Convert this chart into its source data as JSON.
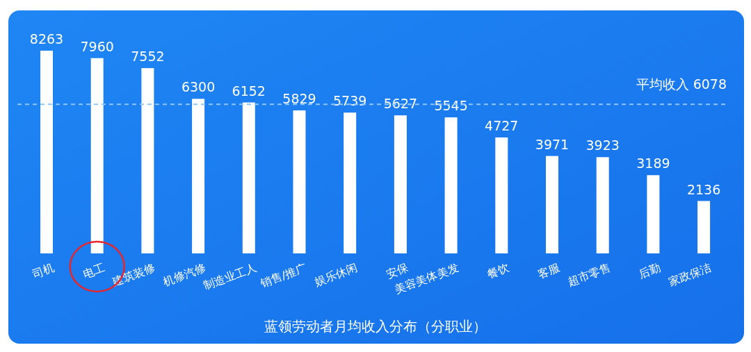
{
  "chart_data": {
    "type": "bar",
    "title": "蓝领劳动者月均收入分布（分职业）",
    "categories": [
      "司机",
      "电工",
      "建筑装修",
      "机修汽修",
      "制造业工人",
      "销售/推广",
      "娱乐休闲",
      "安保",
      "美容美体美发",
      "餐饮",
      "客服",
      "超市零售",
      "后勤",
      "家政保洁"
    ],
    "values": [
      8263,
      7960,
      7552,
      6300,
      6152,
      5829,
      5739,
      5627,
      5545,
      4727,
      3971,
      3923,
      3189,
      2136
    ],
    "color": "#ffffff",
    "data_labels": true,
    "ref_lines": [
      {
        "axis": "y",
        "value": 6078,
        "label": "平均收入 6078",
        "color": "#8ec5f8",
        "line_style": "dashed"
      }
    ]
  }
}
